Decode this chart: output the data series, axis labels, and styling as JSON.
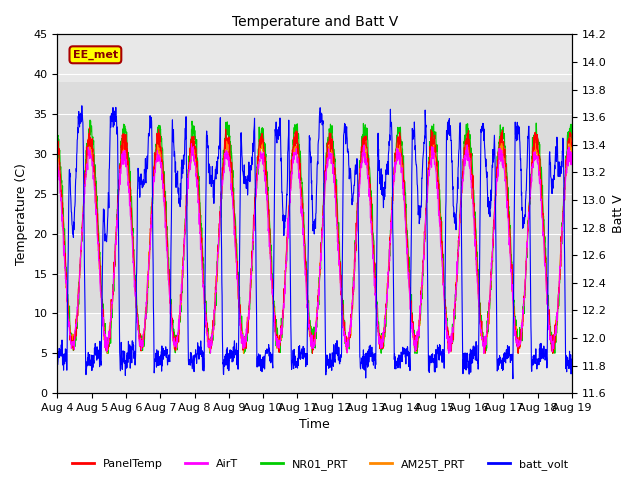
{
  "title": "Temperature and Batt V",
  "xlabel": "Time",
  "ylabel_left": "Temperature (C)",
  "ylabel_right": "Batt V",
  "ylim_left": [
    0,
    45
  ],
  "ylim_right": [
    11.6,
    14.2
  ],
  "xlim": [
    0,
    15
  ],
  "x_ticks": [
    0,
    1,
    2,
    3,
    4,
    5,
    6,
    7,
    8,
    9,
    10,
    11,
    12,
    13,
    14,
    15
  ],
  "x_tick_labels": [
    "Aug 4",
    "Aug 5",
    "Aug 6",
    "Aug 7",
    "Aug 8",
    "Aug 9",
    "Aug 10",
    "Aug 11",
    "Aug 12",
    "Aug 13",
    "Aug 14",
    "Aug 15",
    "Aug 16",
    "Aug 17",
    "Aug 18",
    "Aug 19"
  ],
  "y_ticks_left": [
    0,
    5,
    10,
    15,
    20,
    25,
    30,
    35,
    40,
    45
  ],
  "y_ticks_right": [
    11.6,
    11.8,
    12.0,
    12.2,
    12.4,
    12.6,
    12.8,
    13.0,
    13.2,
    13.4,
    13.6,
    13.8,
    14.0,
    14.2
  ],
  "colors": {
    "PanelTemp": "#ff0000",
    "AirT": "#ff00ff",
    "NR01_PRT": "#00cc00",
    "AM25T_PRT": "#ff8800",
    "batt_volt": "#0000ff"
  },
  "legend_labels": [
    "PanelTemp",
    "AirT",
    "NR01_PRT",
    "AM25T_PRT",
    "batt_volt"
  ],
  "annotation_text": "EE_met",
  "annotation_box_color": "#ffff00",
  "annotation_box_edge": "#aa0000",
  "background_color": "#ffffff",
  "plot_bg_color": "#e8e8e8",
  "grid_color": "#ffffff",
  "shaded_low": 10,
  "shaded_high": 39,
  "n_points": 2000,
  "days": 15,
  "temp_min_night": 6,
  "temp_max_day": 34,
  "batt_day_high": 13.58,
  "batt_night_low": 11.78,
  "figsize": [
    6.4,
    4.8
  ],
  "dpi": 100
}
